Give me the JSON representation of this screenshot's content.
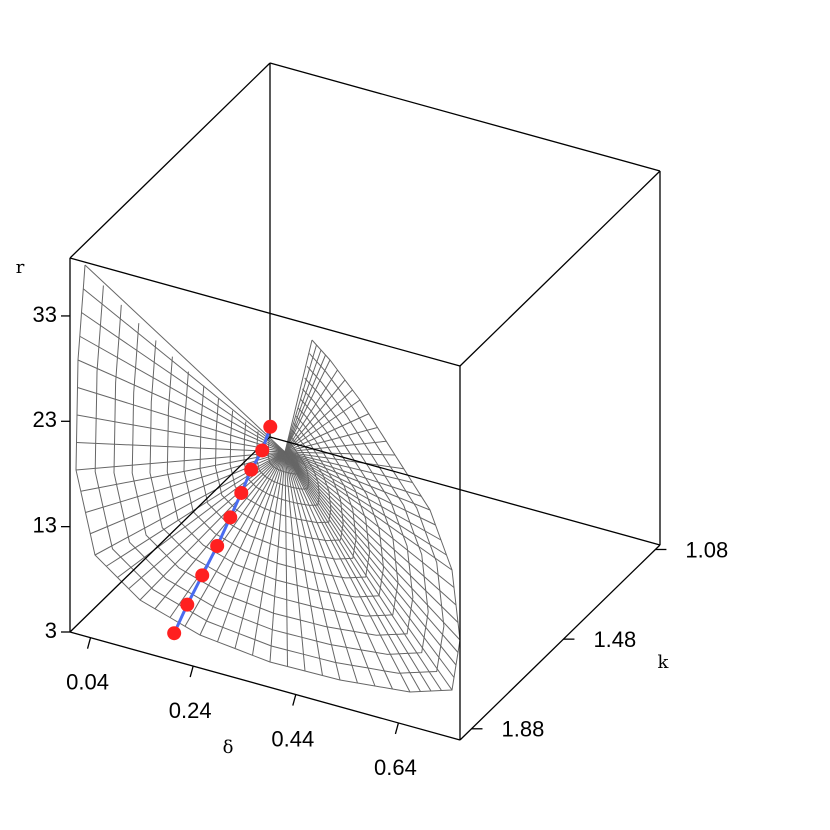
{
  "chart_data": {
    "type": "surface3d",
    "zlabel": "r",
    "xlabel": "δ",
    "ylabel": "k",
    "xlim": [
      0,
      0.76
    ],
    "ylim": [
      1.06,
      1.93
    ],
    "zlim": [
      3,
      38.5
    ],
    "xticks": [
      0.04,
      0.24,
      0.44,
      0.64
    ],
    "yticks": [
      1.08,
      1.48,
      1.88
    ],
    "zticks": [
      3,
      13,
      23,
      33
    ],
    "surface_color": "#666666",
    "series": [
      {
        "color": "#ff2020",
        "line_color": "#4a6cf0",
        "x": [
          0.16,
          0.16,
          0.16,
          0.16,
          0.16,
          0.16,
          0.16,
          0.16,
          0.16
        ],
        "y": [
          1.834,
          1.777,
          1.712,
          1.647,
          1.59,
          1.542,
          1.499,
          1.451,
          1.416
        ],
        "z": [
          3.0,
          4.5,
          5.9,
          7.3,
          8.8,
          10.1,
          11.4,
          12.2,
          13.7
        ]
      }
    ]
  }
}
